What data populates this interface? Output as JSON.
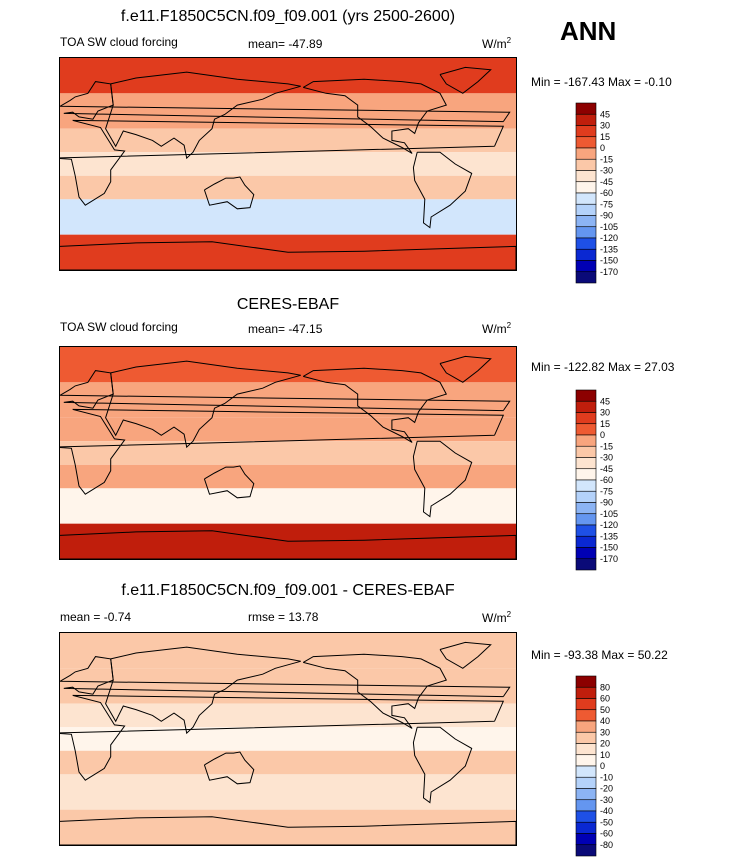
{
  "season": "ANN",
  "units": "W/m",
  "units_exp": "2",
  "colors": {
    "base_scale": [
      "#0a0a78",
      "#0000b4",
      "#0a28d2",
      "#1e50e6",
      "#3c78ee",
      "#6496f0",
      "#8cb4f4",
      "#b4d2fa",
      "#d2e6fc",
      "#fff5eb",
      "#fde4d0",
      "#fbc8a8",
      "#f8a57e",
      "#f47c50",
      "#ee5a32",
      "#e03c1e",
      "#c01e0c",
      "#8c0000"
    ],
    "diff_scale": [
      "#0a0a78",
      "#0000b4",
      "#0a28d2",
      "#1e50e6",
      "#3c78ee",
      "#6496f0",
      "#8cb4f4",
      "#b4d2fa",
      "#d2e6fc",
      "#fff5eb",
      "#fde4d0",
      "#fbc8a8",
      "#f8a57e",
      "#f47c50",
      "#ee5a32",
      "#e03c1e",
      "#c01e0c",
      "#8c0000"
    ],
    "coast": "#000000"
  },
  "chart_data": [
    {
      "type": "heatmap",
      "title": "f.e11.F1850C5CN.f09_f09.001 (yrs 2500-2600)",
      "variable": "TOA SW cloud forcing",
      "mean_text": "mean= -47.89",
      "minmax_text": "Min = -167.43 Max =  -0.10",
      "min": -167.43,
      "max": -0.1,
      "mean": -47.89,
      "levels": [
        "45",
        "30",
        "15",
        "0",
        "-15",
        "-30",
        "-45",
        "-60",
        "-75",
        "-90",
        "-105",
        "-120",
        "-135",
        "-150",
        "-170"
      ],
      "bands": [
        {
          "lat_range": [
            60,
            90
          ],
          "level_index": 13
        },
        {
          "lat_range": [
            30,
            60
          ],
          "level_index": 11
        },
        {
          "lat_range": [
            10,
            30
          ],
          "level_index": 10
        },
        {
          "lat_range": [
            -10,
            10
          ],
          "level_index": 9
        },
        {
          "lat_range": [
            -30,
            -10
          ],
          "level_index": 10
        },
        {
          "lat_range": [
            -60,
            -30
          ],
          "level_index": 7
        },
        {
          "lat_range": [
            -90,
            -60
          ],
          "level_index": 13
        }
      ],
      "lon_range": [
        0,
        360
      ],
      "lat_range": [
        -90,
        90
      ]
    },
    {
      "type": "heatmap",
      "title": "CERES-EBAF",
      "variable": "TOA SW cloud forcing",
      "mean_text": "mean= -47.15",
      "minmax_text": "Min = -122.82 Max =  27.03",
      "min": -122.82,
      "max": 27.03,
      "mean": -47.15,
      "levels": [
        "45",
        "30",
        "15",
        "0",
        "-15",
        "-30",
        "-45",
        "-60",
        "-75",
        "-90",
        "-105",
        "-120",
        "-135",
        "-150",
        "-170"
      ],
      "bands": [
        {
          "lat_range": [
            60,
            90
          ],
          "level_index": 12
        },
        {
          "lat_range": [
            30,
            60
          ],
          "level_index": 11
        },
        {
          "lat_range": [
            10,
            30
          ],
          "level_index": 11
        },
        {
          "lat_range": [
            -10,
            10
          ],
          "level_index": 10
        },
        {
          "lat_range": [
            -30,
            -10
          ],
          "level_index": 11
        },
        {
          "lat_range": [
            -60,
            -30
          ],
          "level_index": 8
        },
        {
          "lat_range": [
            -90,
            -60
          ],
          "level_index": 14
        }
      ],
      "lon_range": [
        0,
        360
      ],
      "lat_range": [
        -90,
        90
      ]
    },
    {
      "type": "heatmap",
      "title": "f.e11.F1850C5CN.f09_f09.001 - CERES-EBAF",
      "variable": "",
      "mean_text": "mean =  -0.74",
      "rmse_text": "rmse =  13.78",
      "minmax_text": "Min = -93.38 Max =  50.22",
      "min": -93.38,
      "max": 50.22,
      "mean": -0.74,
      "rmse": 13.78,
      "levels": [
        "80",
        "60",
        "50",
        "40",
        "30",
        "20",
        "10",
        "0",
        "-10",
        "-20",
        "-30",
        "-40",
        "-50",
        "-60",
        "-80"
      ],
      "bands": [
        {
          "lat_range": [
            60,
            90
          ],
          "level_index": 10
        },
        {
          "lat_range": [
            30,
            60
          ],
          "level_index": 10
        },
        {
          "lat_range": [
            10,
            30
          ],
          "level_index": 9
        },
        {
          "lat_range": [
            -10,
            10
          ],
          "level_index": 8
        },
        {
          "lat_range": [
            -30,
            -10
          ],
          "level_index": 10
        },
        {
          "lat_range": [
            -60,
            -30
          ],
          "level_index": 9
        },
        {
          "lat_range": [
            -90,
            -60
          ],
          "level_index": 10
        }
      ],
      "lon_range": [
        0,
        360
      ],
      "lat_range": [
        -90,
        90
      ]
    }
  ]
}
